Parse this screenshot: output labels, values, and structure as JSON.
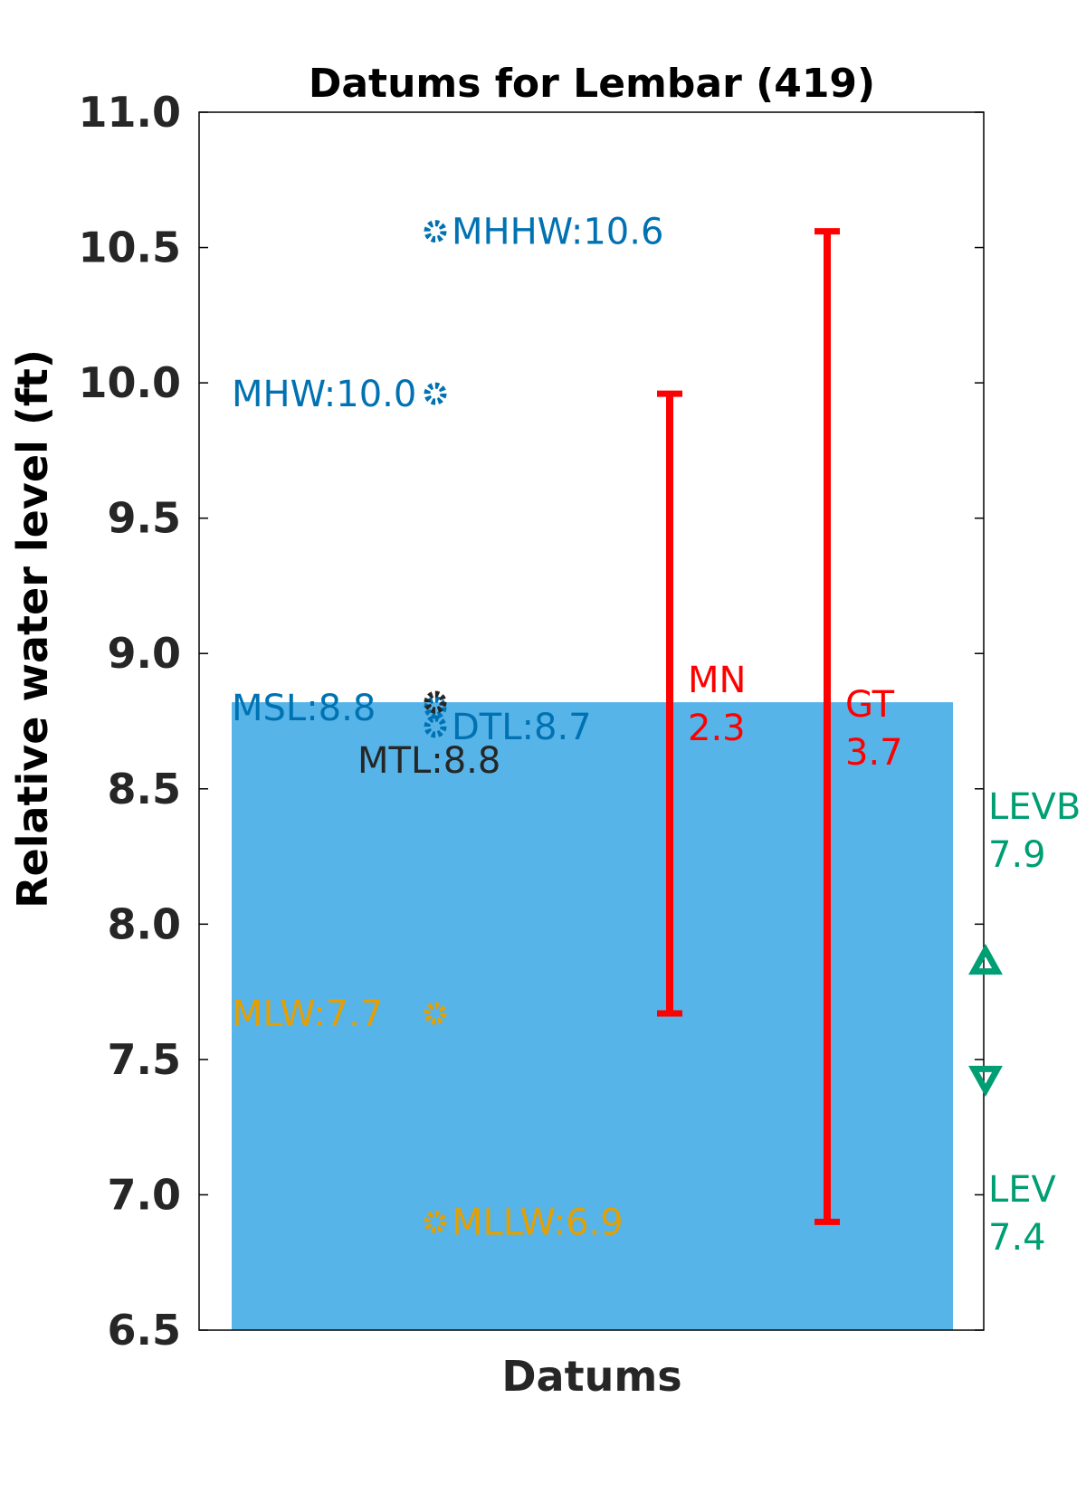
{
  "chart_data": {
    "type": "scatter",
    "title": "Datums for Lembar (419)",
    "xlabel": "Datums",
    "ylabel": "Relative water level (ft)",
    "ylim": [
      6.5,
      11.0
    ],
    "yticks": [
      "6.5",
      "7.0",
      "7.5",
      "8.0",
      "8.5",
      "9.0",
      "9.5",
      "10.0",
      "10.5",
      "11.0"
    ],
    "grid": false,
    "water_fill": {
      "value": 8.82,
      "color": "#56B4E9"
    },
    "datums": [
      {
        "name": "MHHW",
        "label": "MHHW:10.6",
        "value": 10.56,
        "color": "#0072B2",
        "label_side": "right"
      },
      {
        "name": "MHW",
        "label": "MHW:10.0",
        "value": 9.96,
        "color": "#0072B2",
        "label_side": "left"
      },
      {
        "name": "MSL",
        "label": "MSL:8.8",
        "value": 8.8,
        "color": "#0072B2",
        "label_side": "left"
      },
      {
        "name": "MTL",
        "label": "MTL:8.8",
        "value": 8.82,
        "color": "#262626",
        "label_side": "below"
      },
      {
        "name": "DTL",
        "label": "DTL:8.7",
        "value": 8.73,
        "color": "#0072B2",
        "label_side": "right"
      },
      {
        "name": "MLW",
        "label": "MLW:7.7",
        "value": 7.67,
        "color": "#E69F00",
        "label_side": "left"
      },
      {
        "name": "MLLW",
        "label": "MLLW:6.9",
        "value": 6.9,
        "color": "#E69F00",
        "label_side": "right"
      }
    ],
    "ranges": [
      {
        "name": "MN",
        "label": "MN",
        "value_label": "2.3",
        "low": 7.67,
        "high": 9.96,
        "color": "#FF0000"
      },
      {
        "name": "GT",
        "label": "GT",
        "value_label": "3.7",
        "low": 6.9,
        "high": 10.56,
        "color": "#FF0000"
      }
    ],
    "extremes": [
      {
        "name": "LEVB",
        "label": "LEVB",
        "value_label": "7.9",
        "value": 7.86,
        "marker": "triangle-up",
        "color": "#009E73"
      },
      {
        "name": "LEV",
        "label": "LEV",
        "value_label": "7.4",
        "value": 7.43,
        "marker": "triangle-down",
        "color": "#009E73"
      }
    ]
  }
}
